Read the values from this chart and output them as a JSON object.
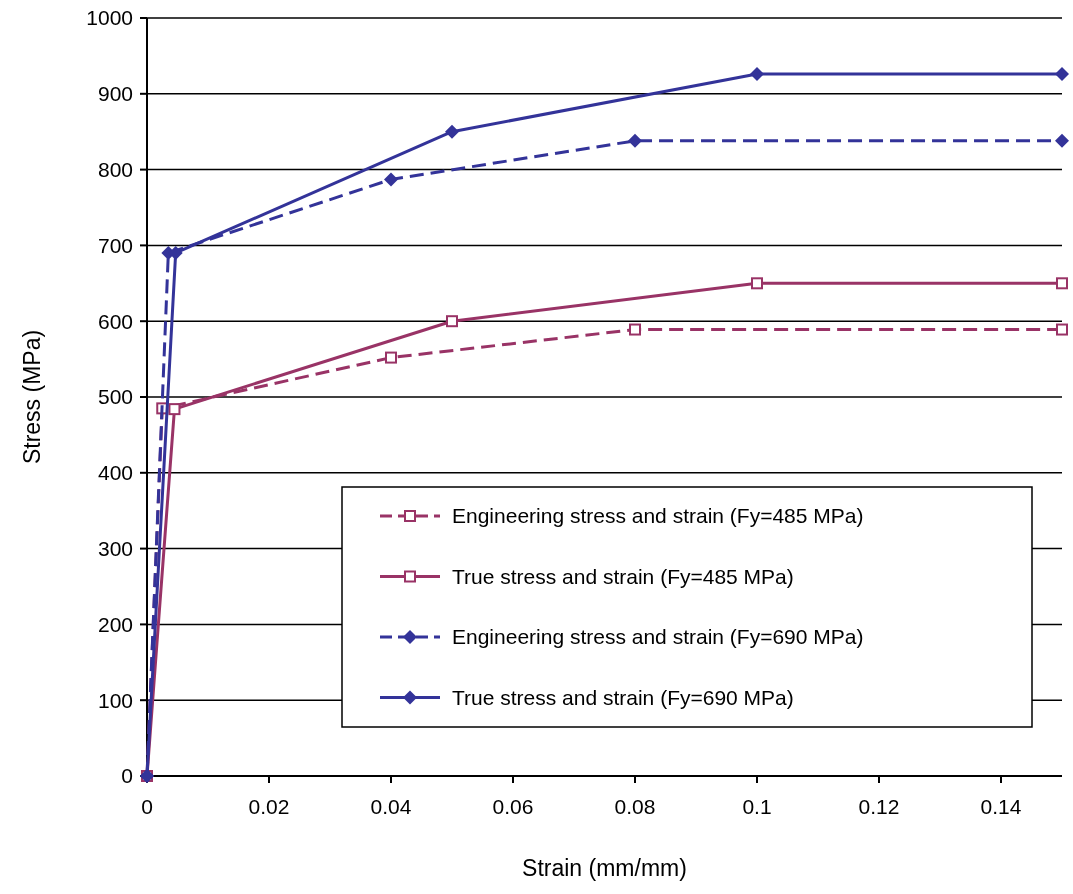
{
  "chart_data": {
    "type": "line",
    "xlabel": "Strain (mm/mm)",
    "ylabel": "Stress (MPa)",
    "xlim": [
      0,
      0.15
    ],
    "xticks": [
      0,
      0.02,
      0.04,
      0.06,
      0.08,
      0.1,
      0.12,
      0.14
    ],
    "ylim": [
      0,
      1000
    ],
    "yticks": [
      0,
      100,
      200,
      300,
      400,
      500,
      600,
      700,
      800,
      900,
      1000
    ],
    "grid": "y",
    "legend": "bottom right",
    "series": [
      {
        "name": "Engineering stress and strain (Fy=485 MPa)",
        "color": "#993366",
        "marker": "square",
        "line_style": "dashed",
        "x": [
          0,
          0.0025,
          0.04,
          0.08,
          0.15
        ],
        "values": [
          0,
          485,
          552,
          589,
          589
        ]
      },
      {
        "name": "True stress and strain (Fy=485 MPa)",
        "color": "#993366",
        "marker": "square",
        "line_style": "solid",
        "x": [
          0,
          0.0045,
          0.05,
          0.1,
          0.15
        ],
        "values": [
          0,
          484,
          600,
          650,
          650
        ]
      },
      {
        "name": "Engineering stress and strain (Fy=690 MPa)",
        "color": "#333399",
        "marker": "diamond",
        "line_style": "dashed",
        "x": [
          0,
          0.0035,
          0.04,
          0.08,
          0.15
        ],
        "values": [
          0,
          690,
          787,
          838,
          838
        ]
      },
      {
        "name": "True stress and strain (Fy=690 MPa)",
        "color": "#333399",
        "marker": "diamond",
        "line_style": "solid",
        "x": [
          0,
          0.0047,
          0.05,
          0.1,
          0.15
        ],
        "values": [
          0,
          690,
          850,
          926,
          926
        ]
      }
    ]
  }
}
